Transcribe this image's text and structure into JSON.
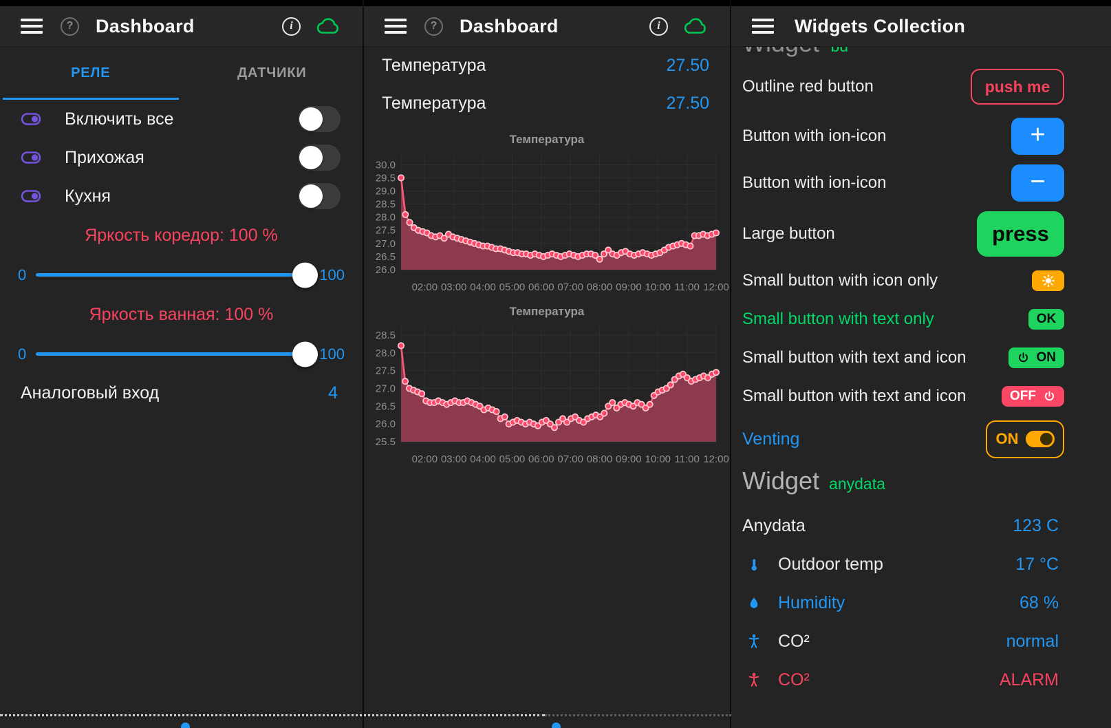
{
  "colors": {
    "accent_blue": "#2196f3",
    "button_blue": "#1b8dff",
    "green": "#1fd35f",
    "cloud_green": "#00c853",
    "label_green": "#00d968",
    "amber": "#ffa800",
    "red": "#f8435f",
    "off_red": "#fc4665",
    "purple": "#7453dc",
    "chart_line": "#fb5a75",
    "chart_fill": "#8d3a4f",
    "chart_marker_fill": "#f94868",
    "chart_marker_stroke": "#ffccd5"
  },
  "left_panel": {
    "header": {
      "title": "Dashboard"
    },
    "tabs": [
      {
        "label": "РЕЛЕ",
        "active": true
      },
      {
        "label": "ДАТЧИКИ",
        "active": false
      }
    ],
    "switches": [
      {
        "label": "Включить все",
        "state": "off"
      },
      {
        "label": "Прихожая",
        "state": "off"
      },
      {
        "label": "Кухня",
        "state": "off"
      }
    ],
    "sliders": [
      {
        "label": "Яркость коредор: 100 %",
        "min": "0",
        "max": "100",
        "value": 100
      },
      {
        "label": "Яркость ванная: 100 %",
        "min": "0",
        "max": "100",
        "value": 100
      }
    ],
    "analog": {
      "label": "Аналоговый вход",
      "value": "4"
    }
  },
  "middle_panel": {
    "header": {
      "title": "Dashboard"
    },
    "values": [
      {
        "label": "Температура",
        "value": "27.50"
      },
      {
        "label": "Температура",
        "value": "27.50"
      }
    ]
  },
  "right_panel": {
    "header": {
      "title": "Widgets Collection"
    },
    "clipped_heading": {
      "title": "Widget",
      "subtitle": "bu"
    },
    "rows": [
      {
        "label": "Outline red button",
        "button": "push me"
      },
      {
        "label": "Button with ion-icon",
        "button": "+"
      },
      {
        "label": "Button with ion-icon",
        "button": "−"
      },
      {
        "label": "Large button",
        "button": "press"
      },
      {
        "label": "Small button with icon only",
        "icon": "sun-icon"
      },
      {
        "label": "Small button with text only",
        "button": "OK"
      },
      {
        "label": "Small button with text and icon",
        "button": "ON",
        "icon": "power-icon"
      },
      {
        "label": "Small button with text and icon",
        "button": "OFF",
        "icon": "power-icon"
      },
      {
        "label": "Venting",
        "button": "ON",
        "icon": "toggle-on-icon"
      }
    ],
    "anydata_heading": {
      "title": "Widget",
      "subtitle": "anydata"
    },
    "anydata_rows": [
      {
        "label": "Anydata",
        "value": "123 C"
      },
      {
        "icon": "thermometer-icon",
        "label": "Outdoor temp",
        "value": "17 °C"
      },
      {
        "icon": "droplet-icon",
        "label": "Humidity",
        "value": "68 %"
      },
      {
        "icon": "person-icon",
        "label": "CO²",
        "value": "normal"
      },
      {
        "icon": "person-icon",
        "label": "CO²",
        "value": "ALARM"
      }
    ]
  },
  "chart_data": [
    {
      "type": "line",
      "title": "Температура",
      "xlabel": "",
      "ylabel": "",
      "legend": false,
      "grid": true,
      "x_labels": [
        "02:00",
        "03:00",
        "04:00",
        "05:00",
        "06:00",
        "07:00",
        "08:00",
        "09:00",
        "10:00",
        "11:00",
        "12:00"
      ],
      "y_ticks": [
        "30.0",
        "29.5",
        "29.0",
        "28.5",
        "28.0",
        "27.5",
        "27.0",
        "26.5",
        "26.0"
      ],
      "y_range": [
        26.0,
        30.4
      ],
      "values": [
        29.5,
        28.1,
        27.8,
        27.6,
        27.5,
        27.45,
        27.4,
        27.3,
        27.25,
        27.3,
        27.2,
        27.35,
        27.25,
        27.2,
        27.15,
        27.1,
        27.05,
        27.0,
        26.95,
        26.9,
        26.9,
        26.85,
        26.8,
        26.8,
        26.75,
        26.7,
        26.65,
        26.65,
        26.6,
        26.6,
        26.55,
        26.6,
        26.55,
        26.5,
        26.55,
        26.6,
        26.55,
        26.5,
        26.55,
        26.6,
        26.55,
        26.5,
        26.55,
        26.6,
        26.6,
        26.55,
        26.4,
        26.6,
        26.75,
        26.6,
        26.55,
        26.65,
        26.7,
        26.6,
        26.55,
        26.6,
        26.65,
        26.6,
        26.55,
        26.6,
        26.65,
        26.75,
        26.85,
        26.9,
        26.95,
        27.0,
        26.95,
        26.9,
        27.3,
        27.3,
        27.35,
        27.3,
        27.35,
        27.4
      ]
    },
    {
      "type": "line",
      "title": "Температура",
      "xlabel": "",
      "ylabel": "",
      "legend": false,
      "grid": true,
      "x_labels": [
        "02:00",
        "03:00",
        "04:00",
        "05:00",
        "06:00",
        "07:00",
        "08:00",
        "09:00",
        "10:00",
        "11:00",
        "12:00"
      ],
      "y_ticks": [
        "28.5",
        "28.0",
        "27.5",
        "27.0",
        "26.5",
        "26.0",
        "25.5"
      ],
      "y_range": [
        25.5,
        28.75
      ],
      "values": [
        28.2,
        27.2,
        27.0,
        26.95,
        26.9,
        26.85,
        26.65,
        26.6,
        26.6,
        26.65,
        26.6,
        26.55,
        26.6,
        26.65,
        26.6,
        26.6,
        26.65,
        26.6,
        26.55,
        26.5,
        26.4,
        26.45,
        26.4,
        26.35,
        26.15,
        26.2,
        26.0,
        26.05,
        26.1,
        26.05,
        26.0,
        26.05,
        26.0,
        25.95,
        26.05,
        26.1,
        26.0,
        25.9,
        26.05,
        26.15,
        26.05,
        26.15,
        26.2,
        26.1,
        26.05,
        26.15,
        26.2,
        26.25,
        26.2,
        26.3,
        26.5,
        26.6,
        26.45,
        26.55,
        26.6,
        26.55,
        26.5,
        26.6,
        26.55,
        26.45,
        26.55,
        26.8,
        26.9,
        26.95,
        27.0,
        27.1,
        27.25,
        27.35,
        27.4,
        27.3,
        27.2,
        27.25,
        27.3,
        27.35,
        27.3,
        27.4,
        27.45
      ]
    }
  ]
}
